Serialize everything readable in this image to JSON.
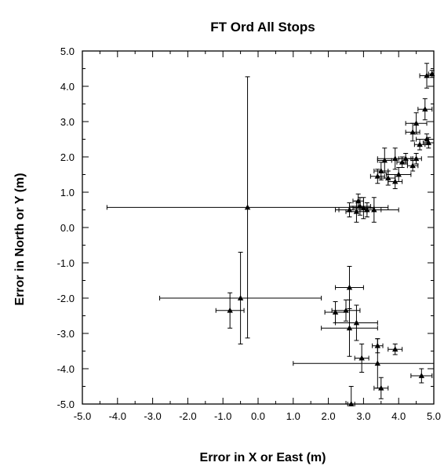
{
  "chart_data": {
    "type": "scatter",
    "title": "FT Ord All Stops",
    "xlabel": "Error in  X or East  (m)",
    "ylabel": "Error in North or  Y  (m)",
    "xlim": [
      -5.0,
      5.0
    ],
    "ylim": [
      -5.0,
      5.0
    ],
    "x_ticks": [
      "-5.0",
      "-4.0",
      "-3.0",
      "-2.0",
      "-1.0",
      "0.0",
      "1.0",
      "2.0",
      "3.0",
      "4.0",
      "5.0"
    ],
    "y_ticks": [
      "-5.0",
      "-4.0",
      "-3.0",
      "-2.0",
      "-1.0",
      "0.0",
      "1.0",
      "2.0",
      "3.0",
      "4.0",
      "5.0"
    ],
    "grid": false,
    "marker": "triangle",
    "error_bars": true,
    "points": [
      {
        "x": -0.3,
        "y": 0.57,
        "xerr": 4.0,
        "yerr": 3.7
      },
      {
        "x": -0.5,
        "y": -2.0,
        "xerr": 2.3,
        "yerr": 1.3
      },
      {
        "x": -0.8,
        "y": -2.35,
        "xerr": 0.4,
        "yerr": 0.5
      },
      {
        "x": 2.6,
        "y": 0.5,
        "xerr": 0.3,
        "yerr": 0.2
      },
      {
        "x": 2.8,
        "y": 0.45,
        "xerr": 0.3,
        "yerr": 0.3
      },
      {
        "x": 2.9,
        "y": 0.6,
        "xerr": 0.3,
        "yerr": 0.25
      },
      {
        "x": 3.0,
        "y": 0.55,
        "xerr": 0.3,
        "yerr": 0.3
      },
      {
        "x": 3.1,
        "y": 0.5,
        "xerr": 0.9,
        "yerr": 0.2
      },
      {
        "x": 2.85,
        "y": 0.75,
        "xerr": 0.15,
        "yerr": 0.2
      },
      {
        "x": 3.3,
        "y": 0.5,
        "xerr": 0.2,
        "yerr": 0.35
      },
      {
        "x": 3.4,
        "y": 1.45,
        "xerr": 0.2,
        "yerr": 0.2
      },
      {
        "x": 3.5,
        "y": 1.6,
        "xerr": 0.2,
        "yerr": 0.25
      },
      {
        "x": 3.6,
        "y": 1.9,
        "xerr": 0.2,
        "yerr": 0.35
      },
      {
        "x": 3.7,
        "y": 1.4,
        "xerr": 0.2,
        "yerr": 0.2
      },
      {
        "x": 3.9,
        "y": 1.3,
        "xerr": 0.2,
        "yerr": 0.2
      },
      {
        "x": 4.0,
        "y": 1.5,
        "xerr": 0.35,
        "yerr": 0.2
      },
      {
        "x": 3.9,
        "y": 1.95,
        "xerr": 0.5,
        "yerr": 0.3
      },
      {
        "x": 4.1,
        "y": 1.85,
        "xerr": 0.15,
        "yerr": 0.15
      },
      {
        "x": 4.2,
        "y": 1.95,
        "xerr": 0.2,
        "yerr": 0.15
      },
      {
        "x": 4.4,
        "y": 1.75,
        "xerr": 0.15,
        "yerr": 0.15
      },
      {
        "x": 4.5,
        "y": 1.95,
        "xerr": 0.15,
        "yerr": 0.15
      },
      {
        "x": 4.4,
        "y": 2.7,
        "xerr": 0.2,
        "yerr": 0.25
      },
      {
        "x": 4.5,
        "y": 2.95,
        "xerr": 0.3,
        "yerr": 0.3
      },
      {
        "x": 4.6,
        "y": 2.35,
        "xerr": 0.15,
        "yerr": 0.15
      },
      {
        "x": 4.8,
        "y": 2.5,
        "xerr": 0.3,
        "yerr": 0.15
      },
      {
        "x": 4.85,
        "y": 2.4,
        "xerr": 0.15,
        "yerr": 0.15
      },
      {
        "x": 4.75,
        "y": 3.35,
        "xerr": 0.2,
        "yerr": 0.3
      },
      {
        "x": 4.8,
        "y": 4.3,
        "xerr": 0.2,
        "yerr": 0.35
      },
      {
        "x": 4.95,
        "y": 4.35,
        "xerr": 0.1,
        "yerr": 0.1
      },
      {
        "x": 2.6,
        "y": -1.7,
        "xerr": 0.4,
        "yerr": 0.6
      },
      {
        "x": 2.5,
        "y": -2.35,
        "xerr": 0.4,
        "yerr": 0.3
      },
      {
        "x": 2.2,
        "y": -2.4,
        "xerr": 0.3,
        "yerr": 0.3
      },
      {
        "x": 2.8,
        "y": -2.7,
        "xerr": 0.6,
        "yerr": 0.5
      },
      {
        "x": 2.6,
        "y": -2.85,
        "xerr": 0.8,
        "yerr": 0.8
      },
      {
        "x": 2.95,
        "y": -3.7,
        "xerr": 0.2,
        "yerr": 0.4
      },
      {
        "x": 3.4,
        "y": -3.35,
        "xerr": 0.15,
        "yerr": 0.2
      },
      {
        "x": 3.4,
        "y": -3.85,
        "xerr": 2.4,
        "yerr": 0.7
      },
      {
        "x": 3.9,
        "y": -3.45,
        "xerr": 0.2,
        "yerr": 0.15
      },
      {
        "x": 3.5,
        "y": -4.55,
        "xerr": 0.2,
        "yerr": 0.3
      },
      {
        "x": 4.65,
        "y": -4.2,
        "xerr": 0.3,
        "yerr": 0.2
      },
      {
        "x": 2.65,
        "y": -5.0,
        "xerr": 0.1,
        "yerr": 0.5
      }
    ]
  }
}
